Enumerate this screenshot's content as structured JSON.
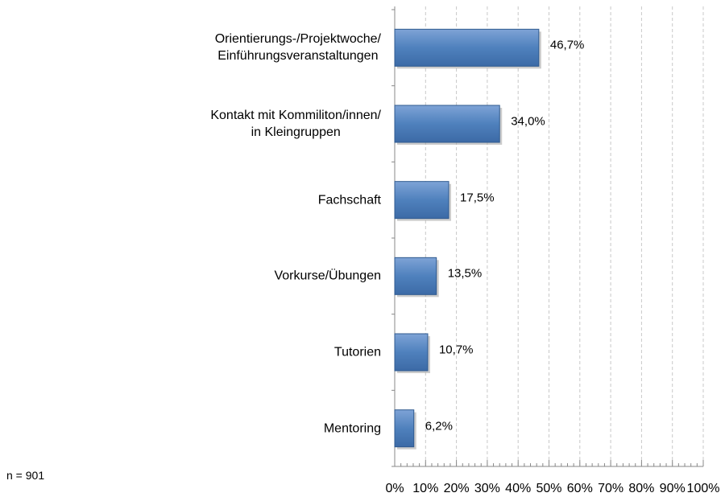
{
  "chart_data": {
    "type": "barh",
    "categories": [
      "Orientierungs-/Projektwoche/\nEinführungsveranstaltungen",
      "Kontakt mit Kommiliton/innen/\nin Kleingruppen",
      "Fachschaft",
      "Vorkurse/Übungen",
      "Tutorien",
      "Mentoring"
    ],
    "values": [
      46.7,
      34.0,
      17.5,
      13.5,
      10.7,
      6.2
    ],
    "value_labels": [
      "46,7%",
      "34,0%",
      "17,5%",
      "13,5%",
      "10,7%",
      "6,2%"
    ],
    "color": "#4f81bd",
    "xlim": [
      0,
      100
    ],
    "xticks": [
      {
        "value": 0,
        "label": "0%"
      },
      {
        "value": 10,
        "label": "10%"
      },
      {
        "value": 20,
        "label": "20%"
      },
      {
        "value": 30,
        "label": "30%"
      },
      {
        "value": 40,
        "label": "40%"
      },
      {
        "value": 50,
        "label": "50%"
      },
      {
        "value": 60,
        "label": "60%"
      },
      {
        "value": 70,
        "label": "70%"
      },
      {
        "value": 80,
        "label": "80%"
      },
      {
        "value": 90,
        "label": "90%"
      },
      {
        "value": 100,
        "label": "100%"
      }
    ],
    "grid": true,
    "note": "n = 901"
  }
}
